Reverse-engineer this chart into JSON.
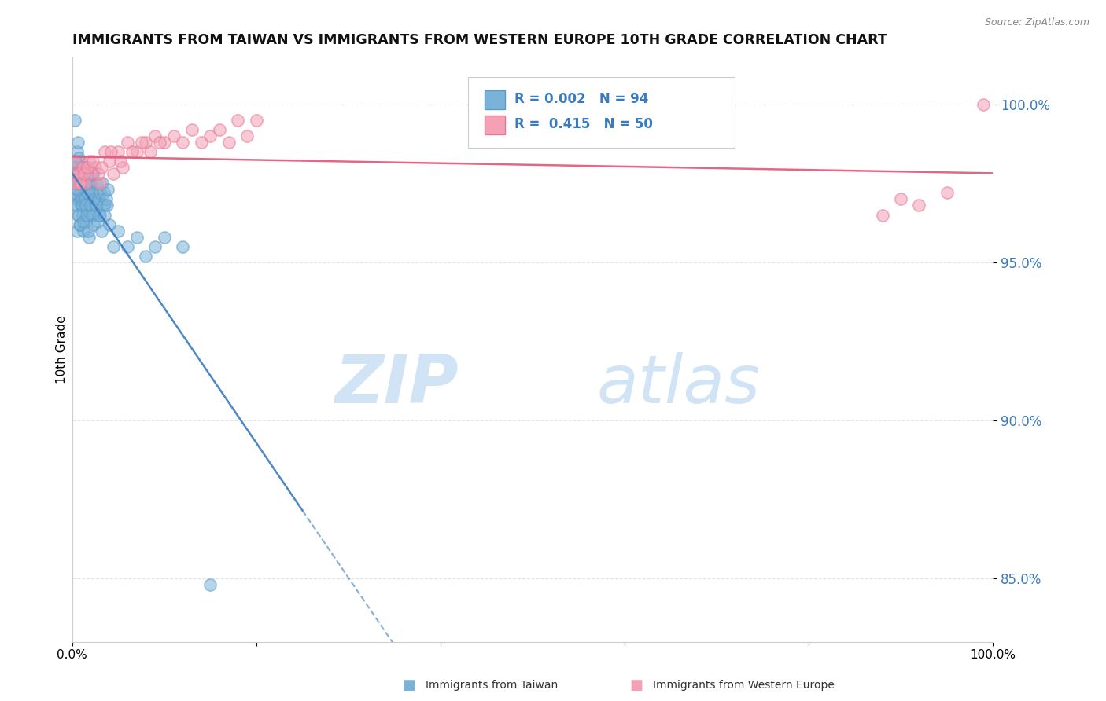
{
  "title": "IMMIGRANTS FROM TAIWAN VS IMMIGRANTS FROM WESTERN EUROPE 10TH GRADE CORRELATION CHART",
  "source": "Source: ZipAtlas.com",
  "ylabel": "10th Grade",
  "xlim": [
    0.0,
    100.0
  ],
  "ylim": [
    83.0,
    101.5
  ],
  "yticks": [
    85.0,
    90.0,
    95.0,
    100.0
  ],
  "ytick_labels": [
    "85.0%",
    "90.0%",
    "95.0%",
    "100.0%"
  ],
  "legend_r_taiwan": "0.002",
  "legend_n_taiwan": "94",
  "legend_r_western": "0.415",
  "legend_n_western": "50",
  "taiwan_color": "#7ab3d9",
  "western_color": "#f4a0b5",
  "taiwan_edge_color": "#5a9bc8",
  "western_edge_color": "#e87898",
  "taiwan_line_color": "#3a7abf",
  "western_line_color": "#e05878",
  "watermark_zip": "ZIP",
  "watermark_atlas": "atlas",
  "watermark_color": "#d0e4f5",
  "taiwan_scatter_x": [
    0.2,
    0.3,
    0.3,
    0.4,
    0.4,
    0.5,
    0.5,
    0.5,
    0.6,
    0.6,
    0.6,
    0.7,
    0.7,
    0.7,
    0.8,
    0.8,
    0.8,
    0.9,
    0.9,
    1.0,
    1.0,
    1.0,
    1.1,
    1.1,
    1.2,
    1.2,
    1.3,
    1.3,
    1.4,
    1.5,
    1.5,
    1.5,
    1.6,
    1.7,
    1.8,
    1.8,
    2.0,
    2.0,
    2.1,
    2.2,
    2.3,
    2.5,
    2.7,
    2.8,
    3.0,
    3.5,
    4.0,
    4.5,
    5.0,
    6.0,
    7.0,
    8.0,
    9.0,
    10.0,
    12.0,
    15.0,
    0.15,
    0.25,
    0.35,
    0.45,
    0.55,
    0.65,
    0.75,
    0.85,
    0.95,
    1.05,
    1.15,
    1.25,
    1.35,
    1.45,
    1.55,
    1.65,
    1.75,
    1.85,
    1.95,
    2.05,
    2.15,
    2.25,
    2.35,
    2.45,
    2.55,
    2.65,
    2.75,
    2.85,
    2.95,
    3.05,
    3.15,
    3.25,
    3.35,
    3.45,
    3.55,
    3.65,
    3.75,
    3.85
  ],
  "taiwan_scatter_y": [
    97.5,
    97.8,
    99.5,
    98.2,
    96.8,
    98.5,
    97.0,
    96.0,
    98.0,
    97.3,
    98.8,
    97.5,
    96.5,
    98.3,
    97.8,
    96.2,
    97.0,
    98.0,
    97.2,
    97.5,
    96.8,
    98.2,
    97.0,
    96.5,
    97.8,
    96.0,
    97.3,
    96.8,
    97.0,
    97.5,
    96.3,
    98.0,
    97.2,
    96.8,
    97.0,
    95.8,
    97.5,
    96.5,
    97.2,
    97.8,
    96.5,
    97.0,
    96.8,
    97.3,
    96.5,
    96.8,
    96.2,
    95.5,
    96.0,
    95.5,
    95.8,
    95.2,
    95.5,
    95.8,
    95.5,
    84.8,
    97.2,
    98.0,
    97.5,
    96.8,
    97.3,
    96.5,
    97.8,
    96.2,
    97.0,
    96.8,
    97.5,
    96.3,
    97.0,
    96.8,
    96.5,
    97.2,
    96.0,
    97.5,
    96.8,
    97.2,
    96.5,
    97.8,
    96.2,
    97.0,
    96.8,
    97.5,
    96.3,
    97.0,
    96.5,
    97.2,
    96.0,
    97.5,
    96.8,
    97.2,
    96.5,
    97.0,
    96.8,
    97.3
  ],
  "western_scatter_x": [
    0.3,
    0.5,
    0.8,
    1.0,
    1.2,
    1.5,
    1.8,
    2.0,
    2.5,
    3.0,
    3.5,
    4.0,
    4.5,
    5.0,
    5.5,
    6.0,
    7.0,
    8.0,
    9.0,
    10.0,
    11.0,
    12.0,
    13.0,
    14.0,
    15.0,
    16.0,
    17.0,
    18.0,
    19.0,
    20.0,
    0.4,
    0.6,
    0.9,
    1.1,
    1.3,
    1.6,
    2.2,
    2.8,
    3.2,
    4.2,
    5.2,
    6.5,
    7.5,
    8.5,
    9.5,
    88.0,
    90.0,
    92.0,
    95.0,
    99.0
  ],
  "western_scatter_y": [
    98.2,
    97.8,
    97.5,
    97.8,
    98.0,
    97.5,
    98.2,
    97.8,
    98.0,
    97.5,
    98.5,
    98.2,
    97.8,
    98.5,
    98.0,
    98.8,
    98.5,
    98.8,
    99.0,
    98.8,
    99.0,
    98.8,
    99.2,
    98.8,
    99.0,
    99.2,
    98.8,
    99.5,
    99.0,
    99.5,
    97.5,
    97.8,
    97.5,
    98.0,
    97.8,
    98.0,
    98.2,
    97.8,
    98.0,
    98.5,
    98.2,
    98.5,
    98.8,
    98.5,
    98.8,
    96.5,
    97.0,
    96.8,
    97.2,
    100.0
  ]
}
